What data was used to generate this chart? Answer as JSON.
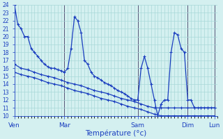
{
  "xlabel": "Température (°c)",
  "bg_color": "#d4f0f0",
  "grid_color": "#a8d8d8",
  "line_color": "#1a3ebf",
  "ylim": [
    10,
    24
  ],
  "yticks": [
    10,
    11,
    12,
    13,
    14,
    15,
    16,
    17,
    18,
    19,
    20,
    21,
    22,
    23,
    24
  ],
  "series1_x": [
    0,
    1,
    2,
    3,
    4,
    5,
    6,
    7,
    8,
    9,
    10,
    11,
    12,
    13,
    14,
    15,
    16,
    17,
    18,
    19,
    20,
    21,
    22,
    23,
    24,
    25,
    26,
    27,
    28,
    29,
    30,
    31,
    32,
    33,
    34,
    35,
    36,
    37,
    38,
    39,
    40,
    41,
    42,
    43,
    44,
    45,
    46,
    47,
    48,
    49,
    50,
    51,
    52,
    53,
    54,
    55,
    56,
    57,
    58,
    59,
    60
  ],
  "series1_y": [
    24,
    21.5,
    21.0,
    20.0,
    20.0,
    18.5,
    18.0,
    17.5,
    17.0,
    16.5,
    16.2,
    16.0,
    16.0,
    15.8,
    15.7,
    15.5,
    16.0,
    18.5,
    22.5,
    22.0,
    20.5,
    17.0,
    16.5,
    15.5,
    15.0,
    14.8,
    14.5,
    14.2,
    14.0,
    13.8,
    13.5,
    13.2,
    13.0,
    12.8,
    12.5,
    12.2,
    12.0,
    12.0,
    16.0,
    17.5,
    16.0,
    14.0,
    12.0,
    10.0,
    11.5,
    12.0,
    12.0,
    18.0,
    20.5,
    20.2,
    18.5,
    18.0,
    12.0,
    12.0,
    11.0,
    11.0,
    11.0,
    11.0,
    11.0,
    11.0,
    11.0
  ],
  "series2_x": [
    0,
    2,
    4,
    6,
    8,
    10,
    12,
    14,
    16,
    18,
    20,
    22,
    24,
    26,
    28,
    30,
    32,
    34,
    36,
    38,
    40,
    42,
    44,
    46,
    48,
    50,
    52,
    54,
    56,
    58,
    60
  ],
  "series2_y": [
    16.5,
    16.0,
    15.8,
    15.5,
    15.2,
    15.0,
    14.8,
    14.5,
    14.2,
    14.0,
    13.8,
    13.5,
    13.2,
    13.0,
    12.8,
    12.5,
    12.2,
    12.0,
    11.8,
    11.5,
    11.2,
    11.0,
    11.0,
    11.0,
    11.0,
    11.0,
    11.0,
    11.0,
    11.0,
    11.0,
    11.0
  ],
  "series3_x": [
    0,
    2,
    4,
    6,
    8,
    10,
    12,
    14,
    16,
    18,
    20,
    22,
    24,
    26,
    28,
    30,
    32,
    34,
    36,
    38,
    40,
    42,
    44,
    46,
    48,
    50,
    52,
    54,
    56,
    58,
    60
  ],
  "series3_y": [
    15.5,
    15.2,
    15.0,
    14.8,
    14.5,
    14.2,
    14.0,
    13.8,
    13.5,
    13.2,
    13.0,
    12.8,
    12.5,
    12.2,
    12.0,
    11.8,
    11.5,
    11.2,
    11.0,
    10.8,
    10.5,
    10.2,
    10.0,
    10.0,
    10.0,
    10.0,
    10.0,
    10.0,
    10.0,
    10.0,
    10.0
  ],
  "vline_x": [
    15,
    37,
    52,
    60
  ],
  "day_tick_x": [
    0,
    15,
    37,
    52,
    60
  ],
  "day_labels": [
    "Ven",
    "Mar",
    "Sam",
    "Dim",
    "Lun"
  ],
  "xlim": [
    0,
    61
  ]
}
